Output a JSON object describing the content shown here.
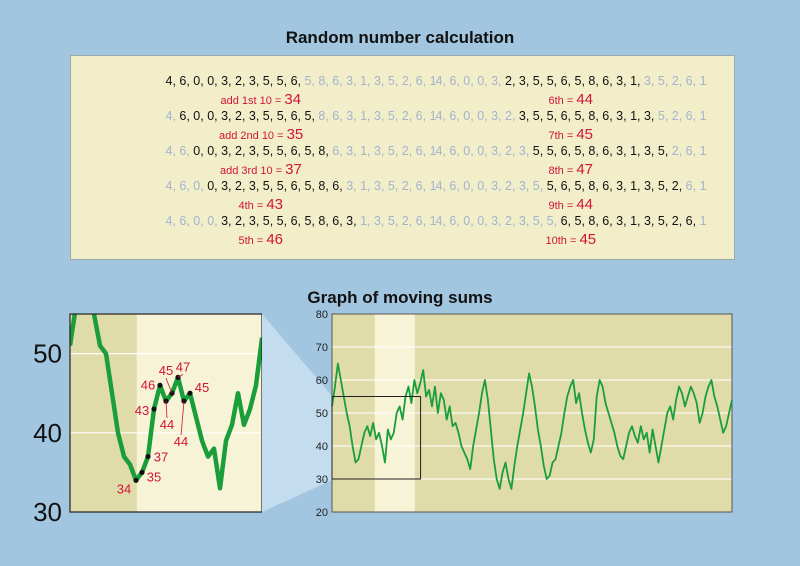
{
  "titles": {
    "top": "Random number calculation",
    "bottom": "Graph of moving sums"
  },
  "calc": {
    "left": [
      {
        "pre": "",
        "bold": "4, 6, 0, 0, 3, 2, 3, 5, 5, 6,",
        "post": " 5, 8, 6, 3, 1, 3, 5, 2, 6, 1",
        "label": "add 1st 10 = ",
        "value": "34"
      },
      {
        "pre": "4, ",
        "bold": "6, 0, 0, 3, 2, 3, 5, 5, 6, 5,",
        "post": " 8, 6, 3, 1, 3, 5, 2, 6, 1",
        "label": "add 2nd 10 = ",
        "value": "35"
      },
      {
        "pre": "4, 6, ",
        "bold": "0, 0, 3, 2, 3, 5, 5, 6, 5, 8,",
        "post": " 6, 3, 1, 3, 5, 2, 6, 1",
        "label": "add 3rd 10 = ",
        "value": "37"
      },
      {
        "pre": "4, 6, 0, ",
        "bold": "0, 3, 2, 3, 5, 5, 6, 5, 8, 6,",
        "post": " 3, 1, 3, 5, 2, 6, 1",
        "label": "4th = ",
        "value": "43"
      },
      {
        "pre": "4, 6, 0, 0, ",
        "bold": "3, 2, 3, 5, 5, 6, 5, 8, 6, 3,",
        "post": " 1, 3, 5, 2, 6, 1",
        "label": "5th = ",
        "value": "46"
      }
    ],
    "right": [
      {
        "pre": "4, 6, 0, 0, 3, ",
        "bold": "2, 3, 5, 5, 6, 5, 8, 6, 3, 1,",
        "post": " 3, 5, 2, 6, 1",
        "label": "6th = ",
        "value": "44"
      },
      {
        "pre": "4, 6, 0, 0, 3, 2, ",
        "bold": "3, 5, 5, 6, 5, 8, 6, 3, 1, 3,",
        "post": " 5, 2, 6, 1",
        "label": "7th = ",
        "value": "45"
      },
      {
        "pre": "4, 6, 0, 0, 3, 2, 3, ",
        "bold": "5, 5, 6, 5, 8, 6, 3, 1, 3, 5,",
        "post": " 2, 6, 1",
        "label": "8th = ",
        "value": "47"
      },
      {
        "pre": "4, 6, 0, 0, 3, 2, 3, 5, ",
        "bold": "5, 6, 5, 8, 6, 3, 1, 3, 5, 2,",
        "post": " 6, 1",
        "label": "9th = ",
        "value": "44"
      },
      {
        "pre": "4, 6, 0, 0, 3, 2, 3, 5, 5, ",
        "bold": "6, 5, 8, 6, 3, 1, 3, 5, 2, 6,",
        "post": " 1",
        "label": "10th = ",
        "value": "45"
      }
    ]
  },
  "chart_data": [
    {
      "type": "line",
      "title": "Graph of moving sums",
      "ylim": [
        20,
        80
      ],
      "yticks": [
        20,
        30,
        40,
        50,
        60,
        70,
        80
      ],
      "xlim": [
        0,
        140
      ],
      "highlight_x": [
        15,
        29
      ],
      "color": "#1a9e3a",
      "y": [
        52,
        58,
        65,
        60,
        55,
        50,
        46,
        40,
        35,
        36,
        40,
        44,
        46,
        43,
        47,
        42,
        44,
        40,
        35,
        45,
        42,
        44,
        50,
        52,
        48,
        55,
        58,
        53,
        60,
        56,
        59,
        63,
        55,
        57,
        52,
        58,
        50,
        56,
        54,
        48,
        52,
        46,
        47,
        44,
        40,
        38,
        36,
        33,
        40,
        45,
        50,
        56,
        60,
        54,
        45,
        36,
        30,
        27,
        32,
        35,
        30,
        27,
        34,
        40,
        45,
        50,
        56,
        62,
        58,
        52,
        45,
        40,
        34,
        30,
        31,
        35,
        36,
        40,
        44,
        50,
        55,
        58,
        60,
        53,
        56,
        50,
        45,
        41,
        38,
        42,
        55,
        60,
        58,
        53,
        50,
        47,
        44,
        40,
        37,
        36,
        40,
        44,
        46,
        43,
        41,
        46,
        42,
        44,
        38,
        45,
        40,
        35,
        40,
        45,
        50,
        52,
        48,
        54,
        58,
        56,
        52,
        55,
        58,
        56,
        53,
        47,
        50,
        55,
        58,
        60,
        55,
        52,
        48,
        44,
        46,
        50,
        54
      ]
    },
    {
      "type": "line",
      "title": "",
      "ylim": [
        30,
        55
      ],
      "yticks": [
        30,
        40,
        50
      ],
      "xlim": [
        0,
        23
      ],
      "highlight_x": [
        8,
        23
      ],
      "color": "#1a9e3a",
      "y": [
        51,
        56,
        61,
        60,
        55,
        51,
        50,
        45,
        40,
        37,
        36,
        34,
        35,
        37,
        43,
        46,
        44,
        45,
        47,
        44,
        45,
        42,
        39,
        37,
        38,
        33,
        39,
        41,
        45,
        41,
        43,
        46,
        52
      ],
      "points": [
        {
          "index": 11,
          "value": "34"
        },
        {
          "index": 12,
          "value": "35"
        },
        {
          "index": 13,
          "value": "37"
        },
        {
          "index": 14,
          "value": "43"
        },
        {
          "index": 15,
          "value": "46"
        },
        {
          "index": 16,
          "value": "44"
        },
        {
          "index": 17,
          "value": "45"
        },
        {
          "index": 18,
          "value": "47"
        },
        {
          "index": 19,
          "value": "44"
        },
        {
          "index": 20,
          "value": "45"
        }
      ]
    }
  ]
}
